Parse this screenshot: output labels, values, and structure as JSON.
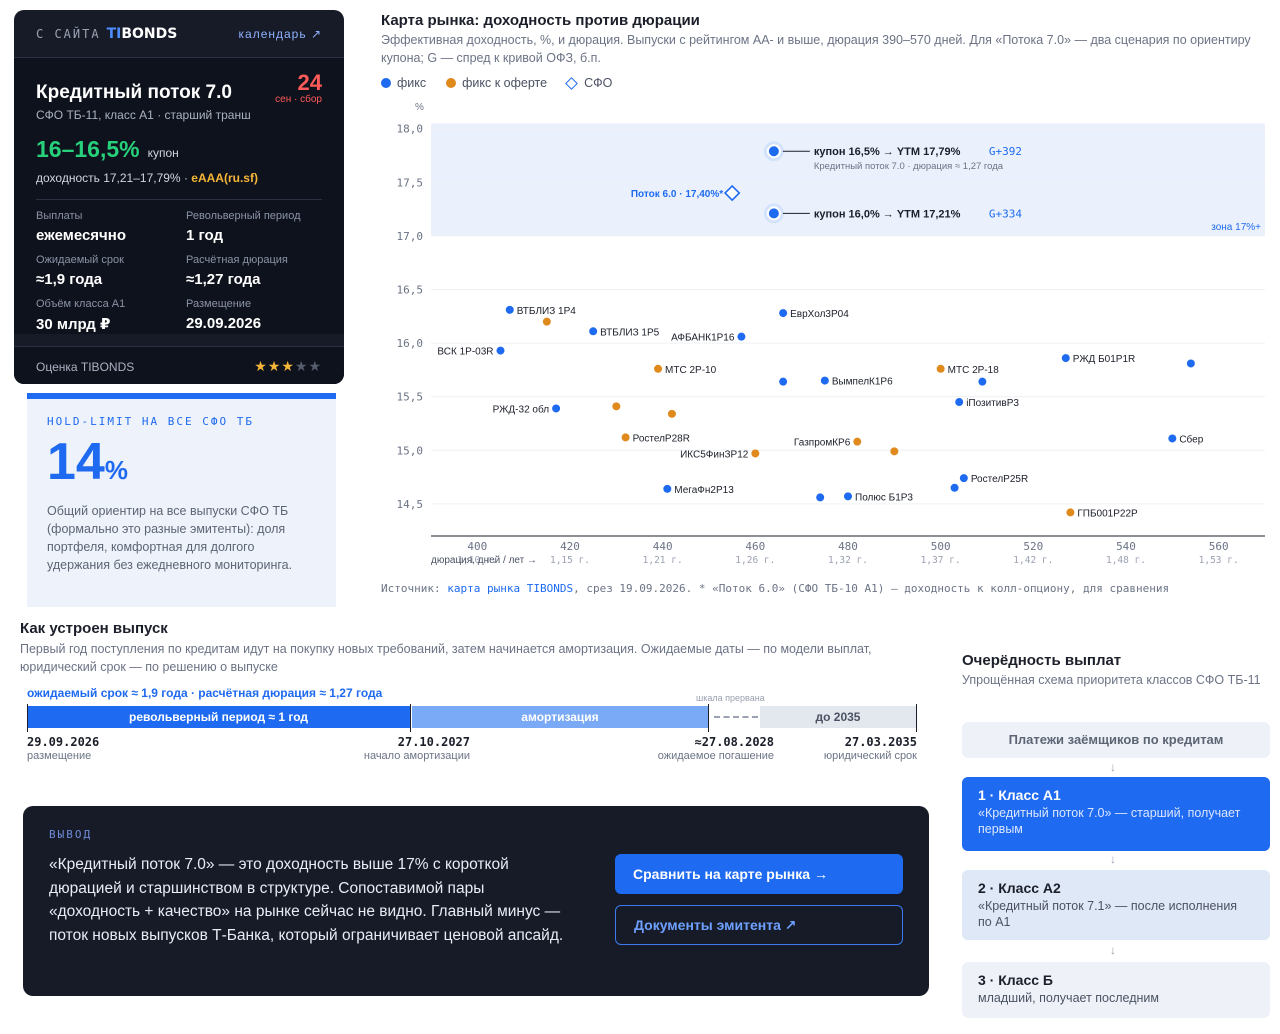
{
  "card": {
    "source_label": "С САЙТА",
    "brand_left": "TI",
    "brand_right": "BONDS",
    "calendar_link": "календарь ↗",
    "title": "Кредитный поток 7.0",
    "subtitle": "СФО ТБ-11, класс А1 · старший транш",
    "date_day": "24",
    "date_note": "сен · сбор",
    "coupon_value": "16–16,5%",
    "coupon_label": "купон",
    "yield_text": "доходность 17,21–17,79% ·",
    "rating": "eAAA(ru.sf)",
    "facts": [
      {
        "label": "Выплаты",
        "value": "ежемесячно"
      },
      {
        "label": "Револьверный период",
        "value": "1 год"
      },
      {
        "label": "Ожидаемый срок",
        "value": "≈1,9 года"
      },
      {
        "label": "Расчётная дюрация",
        "value": "≈1,27 года"
      },
      {
        "label": "Объём класса А1",
        "value": "30 млрд ₽"
      },
      {
        "label": "Размещение",
        "value": "29.09.2026"
      }
    ],
    "score_label": "Оценка TIBONDS",
    "stars_on": "★★★",
    "stars_off": "★★",
    "star_rating": 3
  },
  "hold": {
    "kicker": "HOLD-LIMIT НА ВСЕ СФО ТБ",
    "value": "14",
    "unit": "%",
    "text": "Общий ориентир на все выпуски СФО ТБ (формально это разные эмитенты): доля портфеля, комфортная для долгого удержания без ежедневного мониторинга."
  },
  "chart": {
    "title": "Карта рынка: доходность против дюрации",
    "subtitle": "Эффективная доходность, %, и дюрация. Выпуски с рейтингом АА- и выше, дюрация 390–570 дней. Для «Потока 7.0» — два сценария по ориентиру купона; G — спред к кривой ОФЗ, б.п.",
    "legend": [
      "фикс",
      "фикс к оферте",
      "СФО"
    ],
    "source_label": "Источник:",
    "source_link": "карта рынка TIBONDS",
    "source_rest": ", срез 19.09.2026. * «Поток 6.0» (СФО ТБ-10 А1) — доходность к колл-опциону, для сравнения"
  },
  "chart_data": {
    "type": "scatter",
    "ylabel": "%",
    "xlabel": "дюрация, дней / лет →",
    "xlim": [
      390,
      570
    ],
    "ylim": [
      14.2,
      18.1
    ],
    "y_ticks": [
      "18,0",
      "17,5",
      "17,0",
      "16,5",
      "16,0",
      "15,5",
      "15,0",
      "14,5"
    ],
    "y_tick_values": [
      18.0,
      17.5,
      17.0,
      16.5,
      16.0,
      15.5,
      15.0,
      14.5
    ],
    "x_ticks": [
      {
        "d": "400",
        "y": "1,10 г.",
        "v": 400
      },
      {
        "d": "420",
        "y": "1,15 г.",
        "v": 420
      },
      {
        "d": "440",
        "y": "1,21 г.",
        "v": 440
      },
      {
        "d": "460",
        "y": "1,26 г.",
        "v": 460
      },
      {
        "d": "480",
        "y": "1,32 г.",
        "v": 480
      },
      {
        "d": "500",
        "y": "1,37 г.",
        "v": 500
      },
      {
        "d": "520",
        "y": "1,42 г.",
        "v": 520
      },
      {
        "d": "540",
        "y": "1,48 г.",
        "v": 540
      },
      {
        "d": "560",
        "y": "1,53 г.",
        "v": 560
      }
    ],
    "zone": {
      "label": "зона 17%+",
      "from": 17.0
    },
    "highlights": [
      {
        "x": 464,
        "y": 17.79,
        "label": "купон 16,5% → YTM 17,79%",
        "spread": "G+392",
        "note": "Кредитный поток 7.0 · дюрация ≈ 1,27 года"
      },
      {
        "x": 464,
        "y": 17.21,
        "label": "купон 16,0% → YTM 17,21%",
        "spread": "G+334",
        "note": ""
      }
    ],
    "sfo_point": {
      "x": 455,
      "y": 17.4,
      "label": "Поток 6.0 · 17,40%*"
    },
    "points": [
      {
        "x": 407,
        "y": 16.31,
        "t": "fix",
        "label": "ВТБЛИЗ 1Р4"
      },
      {
        "x": 415,
        "y": 16.2,
        "t": "put",
        "label": ""
      },
      {
        "x": 405,
        "y": 15.93,
        "t": "fix",
        "label": "ВСК 1Р-03R",
        "left": true
      },
      {
        "x": 425,
        "y": 16.11,
        "t": "fix",
        "label": "ВТБЛИЗ 1Р5"
      },
      {
        "x": 457,
        "y": 16.06,
        "t": "fix",
        "label": "АФБАНК1Р16",
        "left": true
      },
      {
        "x": 466,
        "y": 16.28,
        "t": "fix",
        "label": "ЕврХол3Р04"
      },
      {
        "x": 439,
        "y": 15.76,
        "t": "put",
        "label": "МТС 2Р-10"
      },
      {
        "x": 466,
        "y": 15.64,
        "t": "fix",
        "label": ""
      },
      {
        "x": 475,
        "y": 15.65,
        "t": "fix",
        "label": "ВымпелК1Р6"
      },
      {
        "x": 500,
        "y": 15.76,
        "t": "put",
        "label": "МТС 2Р-18"
      },
      {
        "x": 509,
        "y": 15.64,
        "t": "fix",
        "label": ""
      },
      {
        "x": 527,
        "y": 15.86,
        "t": "fix",
        "label": "РЖД Б01Р1R"
      },
      {
        "x": 554,
        "y": 15.81,
        "t": "fix",
        "label": ""
      },
      {
        "x": 417,
        "y": 15.39,
        "t": "fix",
        "label": "РЖД-32 обл",
        "left": true
      },
      {
        "x": 430,
        "y": 15.41,
        "t": "put",
        "label": ""
      },
      {
        "x": 442,
        "y": 15.34,
        "t": "put",
        "label": ""
      },
      {
        "x": 504,
        "y": 15.45,
        "t": "fix",
        "label": "iПозитивР3"
      },
      {
        "x": 432,
        "y": 15.12,
        "t": "put",
        "label": "РостелР28R"
      },
      {
        "x": 460,
        "y": 14.97,
        "t": "put",
        "label": "ИКС5ФинЗР12",
        "left": true
      },
      {
        "x": 482,
        "y": 15.08,
        "t": "put",
        "label": "ГазпромКР6",
        "left": true
      },
      {
        "x": 490,
        "y": 14.99,
        "t": "put",
        "label": ""
      },
      {
        "x": 550,
        "y": 15.11,
        "t": "fix",
        "label": "Сбер"
      },
      {
        "x": 441,
        "y": 14.64,
        "t": "fix",
        "label": "МегаФн2Р13"
      },
      {
        "x": 474,
        "y": 14.56,
        "t": "fix",
        "label": ""
      },
      {
        "x": 480,
        "y": 14.57,
        "t": "fix",
        "label": "Полюс Б1Р3"
      },
      {
        "x": 503,
        "y": 14.65,
        "t": "fix",
        "label": ""
      },
      {
        "x": 505,
        "y": 14.74,
        "t": "fix",
        "label": "РостелР25R"
      },
      {
        "x": 528,
        "y": 14.42,
        "t": "put",
        "label": "ГПБ001Р22Р"
      }
    ]
  },
  "structure": {
    "title": "Как устроен выпуск",
    "subtitle": "Первый год поступления по кредитам идут на покупку новых требований, затем начинается амортизация. Ожидаемые даты — по модели выплат, юридический срок — по решению о выпуске",
    "top_note": "ожидаемый срок ≈ 1,9 года · расчётная дюрация ≈ 1,27 года",
    "break_note": "шкала прервана",
    "seg1": "револьверный период ≈ 1 год",
    "seg2": "амортизация",
    "seg3": "до 2035",
    "marks": [
      {
        "date": "29.09.2026",
        "note": "размещение"
      },
      {
        "date": "27.10.2027",
        "note": "начало амортизации"
      },
      {
        "date": "≈27.08.2028",
        "note": "ожидаемое погашение"
      },
      {
        "date": "27.03.2035",
        "note": "юридический срок"
      }
    ]
  },
  "conclusion": {
    "kicker": "ВЫВОД",
    "text": "«Кредитный поток 7.0» — это доходность выше 17% с короткой дюрацией и старшинством в структуре. Сопоставимой пары «доходность + качество» на рынке сейчас не видно. Главный минус — поток новых выпусков Т-Банка, который ограничивает ценовой апсайд.",
    "btn_compare": "Сравнить на карте рынка →",
    "btn_docs": "Документы эмитента ↗"
  },
  "waterfall": {
    "title": "Очерёдность выплат",
    "subtitle": "Упрощённая схема приоритета классов СФО ТБ-11",
    "source": "Платежи заёмщиков по кредитам",
    "arrow": "↓",
    "classes": [
      {
        "h": "1 · Класс А1",
        "p": "«Кредитный поток 7.0» — старший, получает первым"
      },
      {
        "h": "2 · Класс А2",
        "p": "«Кредитный поток 7.1» — после исполнения по А1"
      },
      {
        "h": "3 · Класс Б",
        "p": "младший, получает последним"
      }
    ]
  },
  "colors": {
    "accent": "#1e6af0",
    "fix": "#1e6af0",
    "put": "#e08a1e",
    "coupon": "#27d07a",
    "date": "#ff5a5a",
    "rating": "#f5b638"
  }
}
